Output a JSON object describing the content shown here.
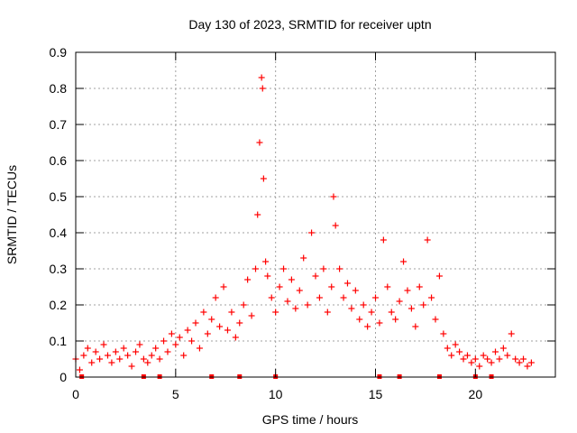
{
  "chart_data": {
    "type": "scatter",
    "title": "Day 130 of 2023, SRMTID for receiver uptn",
    "xlabel": "GPS time / hours",
    "ylabel": "SRMTID / TECUs",
    "xlim": [
      0,
      24
    ],
    "ylim": [
      0,
      0.9
    ],
    "x_ticks": [
      "0",
      "5",
      "10",
      "15",
      "20"
    ],
    "y_ticks": [
      "0",
      "0.1",
      "0.2",
      "0.3",
      "0.4",
      "0.5",
      "0.6",
      "0.7",
      "0.8",
      "0.9"
    ],
    "grid": true,
    "marker": "+",
    "series_color": "#ff0000",
    "series": [
      {
        "name": "SRMTID",
        "x": [
          0.0,
          0.2,
          0.4,
          0.6,
          0.8,
          1.0,
          1.2,
          1.4,
          1.6,
          1.8,
          2.0,
          2.2,
          2.4,
          2.6,
          2.8,
          3.0,
          3.2,
          3.4,
          3.6,
          3.8,
          4.0,
          4.2,
          4.4,
          4.6,
          4.8,
          5.0,
          5.2,
          5.4,
          5.6,
          5.8,
          6.0,
          6.2,
          6.4,
          6.6,
          6.8,
          7.0,
          7.2,
          7.4,
          7.6,
          7.8,
          8.0,
          8.2,
          8.4,
          8.6,
          8.8,
          9.0,
          9.1,
          9.2,
          9.3,
          9.35,
          9.4,
          9.5,
          9.6,
          9.8,
          10.0,
          10.2,
          10.4,
          10.6,
          10.8,
          11.0,
          11.2,
          11.4,
          11.6,
          11.8,
          12.0,
          12.2,
          12.4,
          12.6,
          12.8,
          12.9,
          13.0,
          13.2,
          13.4,
          13.6,
          13.8,
          14.0,
          14.2,
          14.4,
          14.6,
          14.8,
          15.0,
          15.2,
          15.4,
          15.6,
          15.8,
          16.0,
          16.2,
          16.4,
          16.6,
          16.8,
          17.0,
          17.2,
          17.4,
          17.6,
          17.8,
          18.0,
          18.2,
          18.4,
          18.6,
          18.8,
          19.0,
          19.2,
          19.4,
          19.6,
          19.8,
          20.0,
          20.2,
          20.4,
          20.6,
          20.8,
          21.0,
          21.2,
          21.4,
          21.6,
          21.8,
          22.0,
          22.2,
          22.4,
          22.6,
          22.8
        ],
        "y": [
          0.05,
          0.02,
          0.06,
          0.08,
          0.04,
          0.07,
          0.05,
          0.09,
          0.06,
          0.04,
          0.07,
          0.05,
          0.08,
          0.06,
          0.03,
          0.07,
          0.09,
          0.05,
          0.04,
          0.06,
          0.08,
          0.05,
          0.1,
          0.07,
          0.12,
          0.09,
          0.11,
          0.06,
          0.13,
          0.1,
          0.15,
          0.08,
          0.18,
          0.12,
          0.16,
          0.22,
          0.14,
          0.25,
          0.13,
          0.18,
          0.11,
          0.15,
          0.2,
          0.27,
          0.17,
          0.3,
          0.45,
          0.65,
          0.83,
          0.8,
          0.55,
          0.32,
          0.28,
          0.22,
          0.18,
          0.25,
          0.3,
          0.21,
          0.27,
          0.19,
          0.24,
          0.33,
          0.2,
          0.4,
          0.28,
          0.22,
          0.3,
          0.18,
          0.25,
          0.5,
          0.42,
          0.3,
          0.22,
          0.26,
          0.19,
          0.24,
          0.16,
          0.2,
          0.14,
          0.18,
          0.22,
          0.15,
          0.38,
          0.25,
          0.18,
          0.16,
          0.21,
          0.32,
          0.24,
          0.19,
          0.14,
          0.25,
          0.2,
          0.38,
          0.22,
          0.16,
          0.28,
          0.12,
          0.08,
          0.06,
          0.09,
          0.07,
          0.05,
          0.06,
          0.04,
          0.05,
          0.03,
          0.06,
          0.05,
          0.04,
          0.07,
          0.05,
          0.08,
          0.06,
          0.12,
          0.05,
          0.04,
          0.05,
          0.03,
          0.04
        ]
      }
    ],
    "baseline_markers_x": [
      0.3,
      3.4,
      4.2,
      6.8,
      8.2,
      10.0,
      15.2,
      16.2,
      18.2,
      20.0,
      20.8
    ]
  }
}
